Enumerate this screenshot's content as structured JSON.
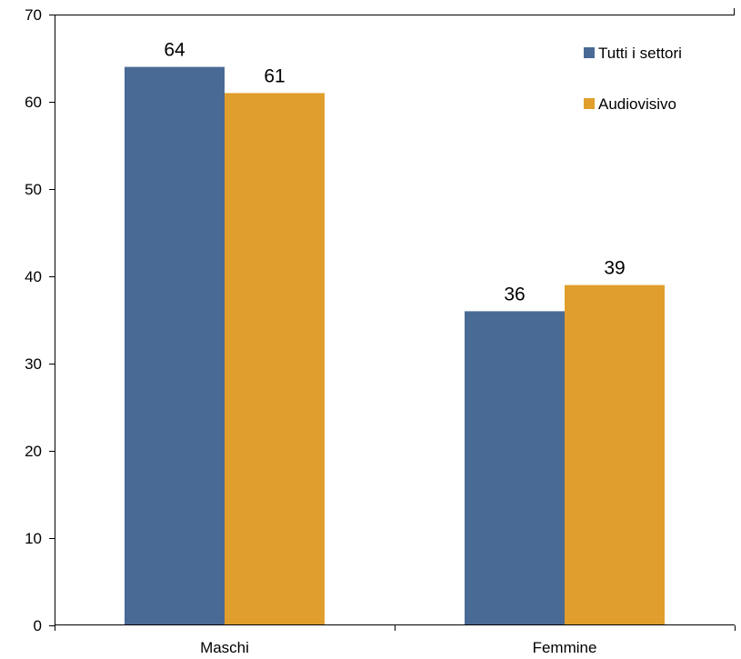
{
  "chart_data": {
    "type": "bar",
    "categories": [
      "Maschi",
      "Femmine"
    ],
    "series": [
      {
        "name": "Tutti i settori",
        "values": [
          64,
          36
        ],
        "color": "#4a6a96"
      },
      {
        "name": "Audiovisivo",
        "values": [
          61,
          39
        ],
        "color": "#e09e2c"
      }
    ],
    "ylim": [
      0,
      70
    ],
    "yticks": [
      0,
      10,
      20,
      30,
      40,
      50,
      60,
      70
    ],
    "grid": false,
    "legend_position": "top-right",
    "data_labels": true
  }
}
